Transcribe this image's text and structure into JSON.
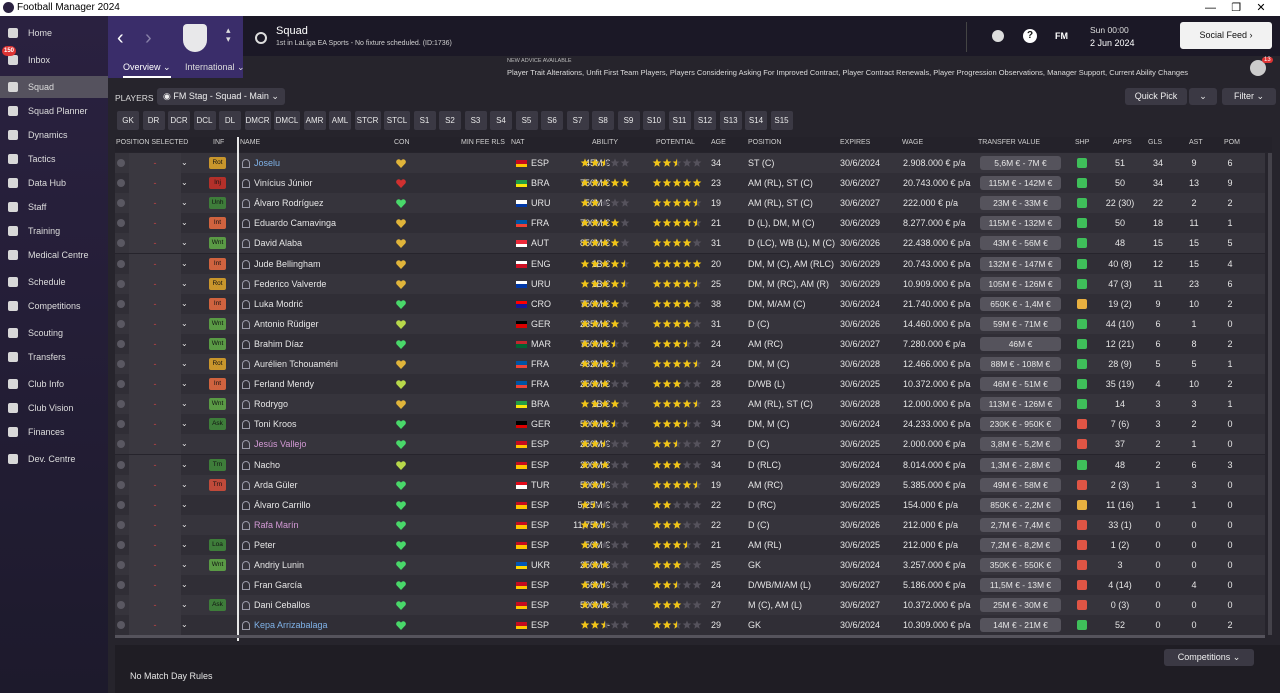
{
  "window_title": "Football Manager 2024",
  "sidebar": {
    "items": [
      "Home",
      "Inbox",
      "Squad",
      "Squad Planner",
      "Dynamics",
      "Tactics",
      "Data Hub",
      "Staff",
      "Training",
      "Medical Centre",
      "Schedule",
      "Competitions",
      "Scouting",
      "Transfers",
      "Club Info",
      "Club Vision",
      "Finances",
      "Dev. Centre"
    ],
    "inbox_badge": "150"
  },
  "header": {
    "title": "Squad",
    "subtitle": "1st in LaLiga EA Sports - No fixture scheduled. (ID:1736)",
    "fm": "FM",
    "time": "Sun 00:00",
    "date": "2 Jun 2024",
    "social_feed": "Social Feed"
  },
  "tabs": [
    "Overview",
    "International"
  ],
  "advice": {
    "label": "NEW ADVICE AVAILABLE",
    "text": "Player Trait Alterations, Unfit First Team Players, Players Considering Asking For Improved Contract, Player Contract Renewals, Player Progression Observations, Manager Support, Current Ability Changes",
    "badge": "13"
  },
  "toolbar": {
    "label": "PLAYERS",
    "view": "FM Stag - Squad - Main",
    "quick_pick": "Quick Pick",
    "filter": "Filter"
  },
  "positions": [
    "GK",
    "DR",
    "DCR",
    "DCL",
    "DL",
    "DMCR",
    "DMCL",
    "AMR",
    "AML",
    "STCR",
    "STCL",
    "S1",
    "S2",
    "S3",
    "S4",
    "S5",
    "S6",
    "S7",
    "S8",
    "S9",
    "S10",
    "S11",
    "S12",
    "S13",
    "S14",
    "S15"
  ],
  "table": {
    "columns": [
      "POSITION SELECTED",
      "INF",
      "NAME",
      "CON",
      "MIN FEE RLS",
      "NAT",
      "ABILITY",
      "POTENTIAL",
      "AGE",
      "POSITION",
      "EXPIRES",
      "WAGE",
      "TRANSFER VALUE",
      "SHP",
      "APPS",
      "GLS",
      "AST",
      "POM"
    ],
    "empty_mark": "-",
    "rows": [
      {
        "inf": "Rot",
        "inf_color": "#c9962c",
        "name": "Joselu",
        "name_color": "#7fb2e8",
        "con": "#e0b43a",
        "fee": "45M €",
        "flag": [
          "#c60b1e",
          "#ffc400"
        ],
        "nat": "ESP",
        "ability": 2.5,
        "potential": 2.5,
        "age": 34,
        "pos": "ST (C)",
        "exp": "30/6/2024",
        "wage": "2.908.000 € p/a",
        "tv": "5,6M € - 7M €",
        "shp": "#3fbf5a",
        "apps": "51",
        "gls": 34,
        "ast": 9,
        "pom": 6
      },
      {
        "inf": "Inj",
        "inf_color": "#b3302a",
        "name": "Vinícius Júnior",
        "name_color": "#e6e6e6",
        "con": "#d03030",
        "fee": "750M €",
        "flag": [
          "#229e45",
          "#f8e509"
        ],
        "nat": "BRA",
        "ability": 5,
        "potential": 5,
        "age": 23,
        "pos": "AM (RL), ST (C)",
        "exp": "30/6/2027",
        "wage": "20.743.000 € p/a",
        "tv": "115M € - 142M €",
        "shp": "#3fbf5a",
        "apps": "50",
        "gls": 34,
        "ast": 13,
        "pom": 9
      },
      {
        "inf": "Unh",
        "inf_color": "#3e7d3a",
        "name": "Álvaro Rodríguez",
        "name_color": "#e6e6e6",
        "con": "#49d86a",
        "fee": "50M €",
        "flag": [
          "#ffffff",
          "#0038a8"
        ],
        "nat": "URU",
        "ability": 2,
        "potential": 4.5,
        "age": 19,
        "pos": "AM (RL), ST (C)",
        "exp": "30/6/2027",
        "wage": "222.000 € p/a",
        "tv": "23M € - 33M €",
        "shp": "#3fbf5a",
        "apps": "22 (30)",
        "gls": 22,
        "ast": 2,
        "pom": 2
      },
      {
        "inf": "Int",
        "inf_color": "#d0633f",
        "name": "Eduardo Camavinga",
        "name_color": "#e6e6e6",
        "con": "#e0b43a",
        "fee": "700M €",
        "flag": [
          "#0055a4",
          "#ef4135"
        ],
        "nat": "FRA",
        "ability": 4,
        "potential": 4.5,
        "age": 21,
        "pos": "D (L), DM, M (C)",
        "exp": "30/6/2029",
        "wage": "8.277.000 € p/a",
        "tv": "115M € - 132M €",
        "shp": "#3fbf5a",
        "apps": "50",
        "gls": 18,
        "ast": 11,
        "pom": 1
      },
      {
        "inf": "Wnt",
        "inf_color": "#5a9a45",
        "name": "David Alaba",
        "name_color": "#e6e6e6",
        "con": "#e0b43a",
        "fee": "850M €",
        "flag": [
          "#ed2939",
          "#ffffff"
        ],
        "nat": "AUT",
        "ability": 4,
        "potential": 4,
        "age": 31,
        "pos": "D (LC), WB (L), M (C)",
        "exp": "30/6/2026",
        "wage": "22.438.000 € p/a",
        "tv": "43M € - 56M €",
        "shp": "#3fbf5a",
        "apps": "48",
        "gls": 15,
        "ast": 15,
        "pom": 5
      },
      {
        "inf": "Int",
        "inf_color": "#d0633f",
        "name": "Jude Bellingham",
        "name_color": "#e6e6e6",
        "con": "#e0b43a",
        "fee": "1B €",
        "flag": [
          "#ffffff",
          "#ce1124"
        ],
        "nat": "ENG",
        "ability": 4.5,
        "potential": 5,
        "age": 20,
        "pos": "DM, M (C), AM (RLC)",
        "exp": "30/6/2029",
        "wage": "20.743.000 € p/a",
        "tv": "132M € - 147M €",
        "shp": "#3fbf5a",
        "apps": "40 (8)",
        "gls": 12,
        "ast": 15,
        "pom": 4
      },
      {
        "inf": "Rot",
        "inf_color": "#c9962c",
        "name": "Federico Valverde",
        "name_color": "#e6e6e6",
        "con": "#e0b43a",
        "fee": "1B €",
        "flag": [
          "#ffffff",
          "#0038a8"
        ],
        "nat": "URU",
        "ability": 4.5,
        "potential": 4.5,
        "age": 25,
        "pos": "DM, M (RC), AM (R)",
        "exp": "30/6/2029",
        "wage": "10.909.000 € p/a",
        "tv": "105M € - 126M €",
        "shp": "#3fbf5a",
        "apps": "47 (3)",
        "gls": 11,
        "ast": 23,
        "pom": 6
      },
      {
        "inf": "Int",
        "inf_color": "#d0633f",
        "name": "Luka Modrić",
        "name_color": "#e6e6e6",
        "con": "#49d86a",
        "fee": "750M €",
        "flag": [
          "#ff0000",
          "#171796"
        ],
        "nat": "CRO",
        "ability": 4,
        "potential": 4,
        "age": 38,
        "pos": "DM, M/AM (C)",
        "exp": "30/6/2024",
        "wage": "21.740.000 € p/a",
        "tv": "650K € - 1,4M €",
        "shp": "#e8b040",
        "apps": "19 (2)",
        "gls": 9,
        "ast": 10,
        "pom": 2
      },
      {
        "inf": "Wnt",
        "inf_color": "#5a9a45",
        "name": "Antonio Rüdiger",
        "name_color": "#e6e6e6",
        "con": "#b8d84a",
        "fee": "235M €",
        "flag": [
          "#000000",
          "#dd0000"
        ],
        "nat": "GER",
        "ability": 4,
        "potential": 4,
        "age": 31,
        "pos": "D (C)",
        "exp": "30/6/2026",
        "wage": "14.460.000 € p/a",
        "tv": "59M € - 71M €",
        "shp": "#3fbf5a",
        "apps": "44 (10)",
        "gls": 6,
        "ast": 1,
        "pom": 0
      },
      {
        "inf": "Wnt",
        "inf_color": "#5a9a45",
        "name": "Brahim Díaz",
        "name_color": "#e6e6e6",
        "con": "#49d86a",
        "fee": "750M €",
        "flag": [
          "#c1272d",
          "#006233"
        ],
        "nat": "MAR",
        "ability": 3.5,
        "potential": 3.5,
        "age": 24,
        "pos": "AM (RC)",
        "exp": "30/6/2027",
        "wage": "7.280.000 € p/a",
        "tv": "46M €",
        "shp": "#3fbf5a",
        "apps": "12 (21)",
        "gls": 6,
        "ast": 8,
        "pom": 2
      },
      {
        "inf": "Rot",
        "inf_color": "#c9962c",
        "name": "Aurélien Tchouaméni",
        "name_color": "#e6e6e6",
        "con": "#e0b43a",
        "fee": "432M €",
        "flag": [
          "#0055a4",
          "#ef4135"
        ],
        "nat": "FRA",
        "ability": 3.5,
        "potential": 4.5,
        "age": 24,
        "pos": "DM, M (C)",
        "exp": "30/6/2028",
        "wage": "12.466.000 € p/a",
        "tv": "88M € - 108M €",
        "shp": "#3fbf5a",
        "apps": "28 (9)",
        "gls": 5,
        "ast": 5,
        "pom": 1
      },
      {
        "inf": "Int",
        "inf_color": "#d0633f",
        "name": "Ferland Mendy",
        "name_color": "#e6e6e6",
        "con": "#b8d84a",
        "fee": "250M €",
        "flag": [
          "#0055a4",
          "#ef4135"
        ],
        "nat": "FRA",
        "ability": 3,
        "potential": 3,
        "age": 28,
        "pos": "D/WB (L)",
        "exp": "30/6/2025",
        "wage": "10.372.000 € p/a",
        "tv": "46M € - 51M €",
        "shp": "#3fbf5a",
        "apps": "35 (19)",
        "gls": 4,
        "ast": 10,
        "pom": 2
      },
      {
        "inf": "Wnt",
        "inf_color": "#5a9a45",
        "name": "Rodrygo",
        "name_color": "#e6e6e6",
        "con": "#e0b43a",
        "fee": "1B €",
        "flag": [
          "#229e45",
          "#f8e509"
        ],
        "nat": "BRA",
        "ability": 4,
        "potential": 4.5,
        "age": 23,
        "pos": "AM (RL), ST (C)",
        "exp": "30/6/2028",
        "wage": "12.000.000 € p/a",
        "tv": "113M € - 126M €",
        "shp": "#3fbf5a",
        "apps": "14",
        "gls": 3,
        "ast": 3,
        "pom": 1
      },
      {
        "inf": "Ask",
        "inf_color": "#3e7d3a",
        "name": "Toni Kroos",
        "name_color": "#e6e6e6",
        "con": "#49d86a",
        "fee": "500M €",
        "flag": [
          "#000000",
          "#dd0000"
        ],
        "nat": "GER",
        "ability": 3.5,
        "potential": 3.5,
        "age": 34,
        "pos": "DM, M (C)",
        "exp": "30/6/2024",
        "wage": "24.233.000 € p/a",
        "tv": "230K € - 950K €",
        "shp": "#e05545",
        "apps": "7 (6)",
        "gls": 3,
        "ast": 2,
        "pom": 0
      },
      {
        "inf": null,
        "inf_color": null,
        "name": "Jesús Vallejo",
        "name_color": "#d49ad6",
        "con": "#49d86a",
        "fee": "250M €",
        "flag": [
          "#c60b1e",
          "#ffc400"
        ],
        "nat": "ESP",
        "ability": 2.5,
        "potential": 2.5,
        "age": 27,
        "pos": "D (C)",
        "exp": "30/6/2025",
        "wage": "2.000.000 € p/a",
        "tv": "3,8M € - 5,2M €",
        "shp": "#e05545",
        "apps": "37",
        "gls": 2,
        "ast": 1,
        "pom": 0
      },
      {
        "inf": "Trn",
        "inf_color": "#3e7d3a",
        "name": "Nacho",
        "name_color": "#e6e6e6",
        "con": "#b8d84a",
        "fee": "200M €",
        "flag": [
          "#c60b1e",
          "#ffc400"
        ],
        "nat": "ESP",
        "ability": 3,
        "potential": 3,
        "age": 34,
        "pos": "D (RLC)",
        "exp": "30/6/2024",
        "wage": "8.014.000 € p/a",
        "tv": "1,3M € - 2,8M €",
        "shp": "#3fbf5a",
        "apps": "48",
        "gls": 2,
        "ast": 6,
        "pom": 3
      },
      {
        "inf": "Trn",
        "inf_color": "#c04a3a",
        "name": "Arda Güler",
        "name_color": "#e6e6e6",
        "con": "#49d86a",
        "fee": "500M €",
        "flag": [
          "#e30a17",
          "#ffffff"
        ],
        "nat": "TUR",
        "ability": 2.5,
        "potential": 4.5,
        "age": 19,
        "pos": "AM (RC)",
        "exp": "30/6/2029",
        "wage": "5.385.000 € p/a",
        "tv": "49M € - 58M €",
        "shp": "#e05545",
        "apps": "2 (3)",
        "gls": 1,
        "ast": 3,
        "pom": 0
      },
      {
        "inf": null,
        "inf_color": null,
        "name": "Álvaro Carrillo",
        "name_color": "#e6e6e6",
        "con": "#49d86a",
        "fee": "5,25M €",
        "flag": [
          "#c60b1e",
          "#ffc400"
        ],
        "nat": "ESP",
        "ability": 1.5,
        "potential": 2,
        "age": 22,
        "pos": "D (RC)",
        "exp": "30/6/2025",
        "wage": "154.000 € p/a",
        "tv": "850K € - 2,2M €",
        "shp": "#e8b040",
        "apps": "11 (16)",
        "gls": 1,
        "ast": 1,
        "pom": 0
      },
      {
        "inf": null,
        "inf_color": null,
        "name": "Rafa Marín",
        "name_color": "#d49ad6",
        "con": "#49d86a",
        "fee": "11,75M €",
        "flag": [
          "#c60b1e",
          "#ffc400"
        ],
        "nat": "ESP",
        "ability": 2.5,
        "potential": 3,
        "age": 22,
        "pos": "D (C)",
        "exp": "30/6/2026",
        "wage": "212.000 € p/a",
        "tv": "2,7M € - 7,4M €",
        "shp": "#e05545",
        "apps": "33 (1)",
        "gls": 0,
        "ast": 0,
        "pom": 0
      },
      {
        "inf": "Loa",
        "inf_color": "#3e7d3a",
        "name": "Peter",
        "name_color": "#e6e6e6",
        "con": "#49d86a",
        "fee": "50M €",
        "flag": [
          "#c60b1e",
          "#ffc400"
        ],
        "nat": "ESP",
        "ability": 2,
        "potential": 3.5,
        "age": 21,
        "pos": "AM (RL)",
        "exp": "30/6/2025",
        "wage": "212.000 € p/a",
        "tv": "7,2M € - 8,2M €",
        "shp": "#e05545",
        "apps": "1 (2)",
        "gls": 0,
        "ast": 0,
        "pom": 0
      },
      {
        "inf": "Wnt",
        "inf_color": "#5a9a45",
        "name": "Andriy Lunin",
        "name_color": "#e6e6e6",
        "con": "#49d86a",
        "fee": "250M €",
        "flag": [
          "#0057b7",
          "#ffd700"
        ],
        "nat": "UKR",
        "ability": 3,
        "potential": 3,
        "age": 25,
        "pos": "GK",
        "exp": "30/6/2024",
        "wage": "3.257.000 € p/a",
        "tv": "350K € - 550K €",
        "shp": "#e05545",
        "apps": "3",
        "gls": 0,
        "ast": 0,
        "pom": 0
      },
      {
        "inf": null,
        "inf_color": null,
        "name": "Fran García",
        "name_color": "#e6e6e6",
        "con": "#49d86a",
        "fee": "56M €",
        "flag": [
          "#c60b1e",
          "#ffc400"
        ],
        "nat": "ESP",
        "ability": 2.5,
        "potential": 2.5,
        "age": 24,
        "pos": "D/WB/M/AM (L)",
        "exp": "30/6/2027",
        "wage": "5.186.000 € p/a",
        "tv": "11,5M € - 13M €",
        "shp": "#e05545",
        "apps": "4 (14)",
        "gls": 0,
        "ast": 4,
        "pom": 0
      },
      {
        "inf": "Ask",
        "inf_color": "#3e7d3a",
        "name": "Dani Ceballos",
        "name_color": "#e6e6e6",
        "con": "#49d86a",
        "fee": "500M €",
        "flag": [
          "#c60b1e",
          "#ffc400"
        ],
        "nat": "ESP",
        "ability": 3,
        "potential": 3,
        "age": 27,
        "pos": "M (C), AM (L)",
        "exp": "30/6/2027",
        "wage": "10.372.000 € p/a",
        "tv": "25M € - 30M €",
        "shp": "#e05545",
        "apps": "0 (3)",
        "gls": 0,
        "ast": 0,
        "pom": 0
      },
      {
        "inf": null,
        "inf_color": null,
        "name": "Kepa Arrizabalaga",
        "name_color": "#7fb2e8",
        "con": "#49d86a",
        "fee": "-",
        "flag": [
          "#c60b1e",
          "#ffc400"
        ],
        "nat": "ESP",
        "ability": 2.5,
        "potential": 2.5,
        "age": 29,
        "pos": "GK",
        "exp": "30/6/2024",
        "wage": "10.309.000 € p/a",
        "tv": "14M € - 21M €",
        "shp": "#3fbf5a",
        "apps": "52",
        "gls": 0,
        "ast": 0,
        "pom": 2
      }
    ]
  },
  "footer": {
    "rules": "No Match Day Rules",
    "competitions": "Competitions"
  }
}
